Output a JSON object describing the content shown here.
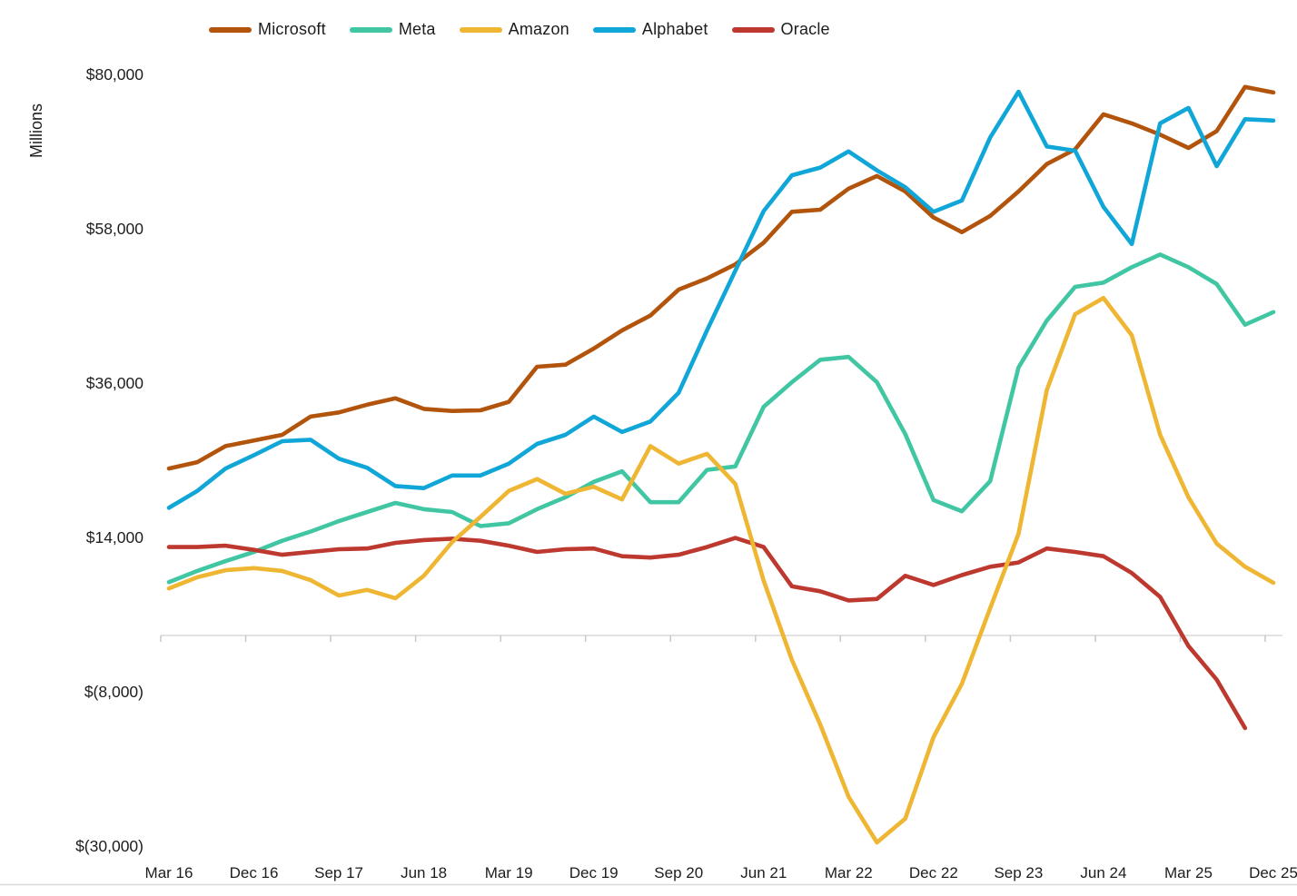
{
  "y_axis": {
    "title": "Millions",
    "ticks": [
      {
        "label": "$80,000",
        "value": 80000
      },
      {
        "label": "$58,000",
        "value": 58000
      },
      {
        "label": "$36,000",
        "value": 36000
      },
      {
        "label": "$14,000",
        "value": 14000
      },
      {
        "label": "$(8,000)",
        "value": -8000
      },
      {
        "label": "$(30,000)",
        "value": -30000
      }
    ]
  },
  "x_axis": {
    "visible_tick_labels": [
      "Mar 16",
      "Dec 16",
      "Sep 17",
      "Jun 18",
      "Mar 19",
      "Dec 19",
      "Sep 20",
      "Jun 21",
      "Mar 22",
      "Dec 22",
      "Sep 23",
      "Jun 24",
      "Mar 25",
      "Dec 25"
    ],
    "label_every_n_points": 3
  },
  "chart_data": {
    "type": "line",
    "title": "",
    "xlabel": "",
    "ylabel": "Millions",
    "ylim": [
      -30000,
      80000
    ],
    "grid": false,
    "legend_position": "top",
    "zero_axis_line": true,
    "x": [
      "Mar 16",
      "Jun 16",
      "Sep 16",
      "Dec 16",
      "Mar 17",
      "Jun 17",
      "Sep 17",
      "Dec 17",
      "Mar 18",
      "Jun 18",
      "Sep 18",
      "Dec 18",
      "Mar 19",
      "Jun 19",
      "Sep 19",
      "Dec 19",
      "Mar 20",
      "Jun 20",
      "Sep 20",
      "Dec 20",
      "Mar 21",
      "Jun 21",
      "Sep 21",
      "Dec 21",
      "Mar 22",
      "Jun 22",
      "Sep 22",
      "Dec 22",
      "Mar 23",
      "Jun 23",
      "Sep 23",
      "Dec 23",
      "Mar 24",
      "Jun 24",
      "Sep 24",
      "Dec 24",
      "Mar 25",
      "Jun 25",
      "Sep 25",
      "Dec 25"
    ],
    "series": [
      {
        "name": "Microsoft",
        "color": "#b2540c",
        "values": [
          23800,
          24700,
          27000,
          27800,
          28600,
          31200,
          31800,
          32900,
          33800,
          32300,
          32000,
          32100,
          33300,
          38300,
          38600,
          40900,
          43500,
          45600,
          49300,
          50900,
          52900,
          56000,
          60400,
          60700,
          63700,
          65500,
          63300,
          59600,
          57500,
          59800,
          63300,
          67200,
          69300,
          74300,
          73000,
          71400,
          69500,
          71900,
          78200,
          77400
        ]
      },
      {
        "name": "Meta",
        "color": "#41c6a3",
        "values": [
          7600,
          9200,
          10600,
          11900,
          13500,
          14800,
          16300,
          17600,
          18900,
          18000,
          17600,
          15600,
          16000,
          18000,
          19700,
          21900,
          23400,
          19000,
          19000,
          23600,
          24100,
          32600,
          36100,
          39300,
          39700,
          36100,
          28700,
          19300,
          17700,
          22000,
          38200,
          44900,
          49700,
          50300,
          52500,
          54300,
          52500,
          50100,
          44300,
          46100
        ]
      },
      {
        "name": "Amazon",
        "color": "#eeb632",
        "values": [
          6700,
          8300,
          9300,
          9600,
          9200,
          7900,
          5700,
          6500,
          5300,
          8500,
          13300,
          16900,
          20600,
          22300,
          20200,
          21200,
          19400,
          27000,
          24500,
          25900,
          21600,
          7800,
          -3500,
          -12700,
          -23000,
          -29500,
          -26100,
          -14500,
          -6900,
          3900,
          14500,
          35000,
          45800,
          48100,
          42800,
          28600,
          19700,
          13100,
          9800,
          7500
        ]
      },
      {
        "name": "Alphabet",
        "color": "#10a6d8",
        "values": [
          18200,
          20600,
          23800,
          25700,
          27700,
          27900,
          25200,
          23900,
          21300,
          21000,
          22800,
          22800,
          24500,
          27300,
          28600,
          31200,
          29000,
          30500,
          34600,
          43500,
          52000,
          60500,
          65600,
          66700,
          69000,
          66300,
          63900,
          60400,
          62000,
          71000,
          77500,
          69700,
          69100,
          61100,
          55800,
          73000,
          75200,
          66900,
          73600,
          73400
        ]
      },
      {
        "name": "Oracle",
        "color": "#bd382e",
        "values": [
          12600,
          12600,
          12800,
          12200,
          11500,
          11900,
          12300,
          12400,
          13200,
          13600,
          13800,
          13500,
          12800,
          11900,
          12300,
          12400,
          11300,
          11100,
          11500,
          12600,
          13900,
          12600,
          7000,
          6300,
          5000,
          5200,
          8500,
          7200,
          8600,
          9800,
          10400,
          12400,
          11900,
          11300,
          8900,
          5500,
          -1500,
          -6300,
          -13200,
          null
        ]
      }
    ]
  },
  "style_tokens": {
    "axis_line_color": "#d9d9d9",
    "tick_color": "#c9c9c9",
    "label_color": "#1d1d1d"
  }
}
